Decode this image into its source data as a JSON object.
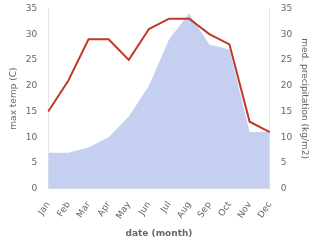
{
  "chart_data": {
    "type": "line",
    "categories": [
      "Jan",
      "Feb",
      "Mar",
      "Apr",
      "May",
      "Jun",
      "Jul",
      "Aug",
      "Sep",
      "Oct",
      "Nov",
      "Dec"
    ],
    "xlabel": "date (month)",
    "ylabel": "max temp (C)",
    "y2label": "med. precipitation (kg/m2)",
    "series": [
      {
        "type": "area",
        "axis": "y2",
        "color": "#c5d0f0",
        "values": [
          7,
          7,
          8,
          10,
          14,
          20,
          29,
          34,
          28,
          27,
          11,
          11
        ]
      },
      {
        "type": "line",
        "color": "#c0392b",
        "values": [
          15,
          21,
          29,
          29,
          25,
          31,
          33,
          33,
          30,
          28,
          13,
          11
        ]
      }
    ],
    "ylim": [
      0,
      35
    ],
    "yticks": [
      0,
      5,
      10,
      15,
      20,
      25,
      30,
      35
    ],
    "y2lim": [
      0,
      35
    ],
    "y2ticks": [
      0,
      5,
      10,
      15,
      20,
      25,
      30,
      35
    ],
    "grid": false
  }
}
